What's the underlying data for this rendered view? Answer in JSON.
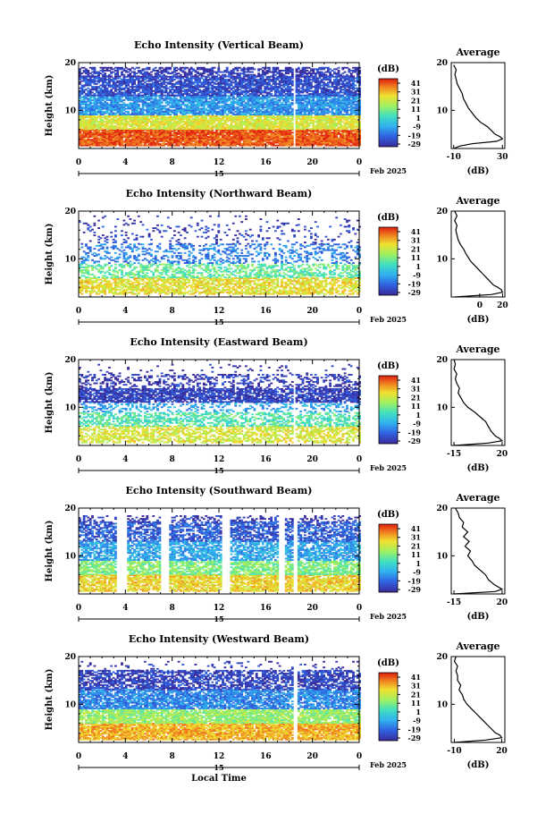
{
  "chart_data": [
    {
      "type": "heatmap",
      "title": "Echo Intensity (Vertical Beam)",
      "ylabel": "Height (km)",
      "xlim": [
        0,
        24
      ],
      "ylim": [
        2,
        20
      ],
      "x_ticks": [
        "0",
        "4",
        "8",
        "12",
        "16",
        "20",
        "0"
      ],
      "y_ticks": [
        "20",
        "10"
      ],
      "date_mark": "15",
      "date_label": "Feb 2025",
      "colorbar": {
        "label": "(dB)",
        "ticks": [
          "41",
          "31",
          "21",
          "11",
          "1",
          "-9",
          "-19",
          "-29"
        ]
      },
      "layers": [
        {
          "bottom": 2.5,
          "top": 6,
          "value": 35,
          "coverage": 0.95
        },
        {
          "bottom": 6,
          "top": 9,
          "value": 18,
          "coverage": 0.9
        },
        {
          "bottom": 9,
          "top": 13,
          "value": -12,
          "coverage": 0.85
        },
        {
          "bottom": 13,
          "top": 17,
          "value": -22,
          "coverage": 0.8
        },
        {
          "bottom": 17,
          "top": 19,
          "value": -26,
          "coverage": 0.6
        }
      ],
      "gaps": [
        18.2,
        18.5
      ],
      "profile": {
        "title": "Average",
        "xlabel": "(dB)",
        "x_ticks": [
          "-10",
          "30"
        ],
        "x_tick_values": [
          -10,
          30
        ],
        "xlim": [
          -12,
          32
        ],
        "y_ticks": [
          "20",
          "10"
        ],
        "points": [
          [
            -10,
            2
          ],
          [
            -5,
            2.5
          ],
          [
            5,
            3
          ],
          [
            25,
            3.5
          ],
          [
            30,
            4
          ],
          [
            28,
            4.5
          ],
          [
            24,
            5
          ],
          [
            22,
            5.5
          ],
          [
            20,
            6
          ],
          [
            18,
            6.5
          ],
          [
            15,
            7
          ],
          [
            12,
            7.5
          ],
          [
            8,
            8.5
          ],
          [
            5,
            9.5
          ],
          [
            2,
            10.5
          ],
          [
            0,
            11.5
          ],
          [
            -2,
            12.5
          ],
          [
            -3,
            13.5
          ],
          [
            -5,
            14.5
          ],
          [
            -7,
            15.5
          ],
          [
            -8,
            16.5
          ],
          [
            -9,
            17.5
          ],
          [
            -8,
            18.5
          ],
          [
            -10,
            19.5
          ]
        ]
      }
    },
    {
      "type": "heatmap",
      "title": "Echo Intensity (Northward Beam)",
      "ylabel": "Height (km)",
      "xlim": [
        0,
        24
      ],
      "ylim": [
        2,
        20
      ],
      "x_ticks": [
        "0",
        "4",
        "8",
        "12",
        "16",
        "20",
        "0"
      ],
      "y_ticks": [
        "20",
        "10"
      ],
      "date_mark": "15",
      "date_label": "Feb 2025",
      "colorbar": {
        "label": "(dB)",
        "ticks": [
          "41",
          "31",
          "21",
          "11",
          "1",
          "-9",
          "-19",
          "-29"
        ]
      },
      "layers": [
        {
          "bottom": 2.5,
          "top": 6,
          "value": 20,
          "coverage": 0.7
        },
        {
          "bottom": 6,
          "top": 9,
          "value": 5,
          "coverage": 0.5
        },
        {
          "bottom": 9,
          "top": 13,
          "value": -15,
          "coverage": 0.3
        },
        {
          "bottom": 13,
          "top": 17,
          "value": -24,
          "coverage": 0.12
        },
        {
          "bottom": 17,
          "top": 19,
          "value": -27,
          "coverage": 0.04
        }
      ],
      "gaps": [],
      "profile": {
        "title": "Average",
        "xlabel": "(dB)",
        "x_ticks": [
          "0",
          "20"
        ],
        "x_tick_values": [
          0,
          20
        ],
        "xlim": [
          -25,
          22
        ],
        "y_ticks": [
          "20",
          "10"
        ],
        "points": [
          [
            -22,
            2
          ],
          [
            10,
            2.5
          ],
          [
            20,
            3
          ],
          [
            19,
            3.5
          ],
          [
            16,
            4
          ],
          [
            12,
            4.5
          ],
          [
            8,
            5.5
          ],
          [
            4,
            6.5
          ],
          [
            0,
            7.5
          ],
          [
            -4,
            8.5
          ],
          [
            -8,
            9.5
          ],
          [
            -12,
            11
          ],
          [
            -14,
            12
          ],
          [
            -17,
            13
          ],
          [
            -19,
            14
          ],
          [
            -20,
            15
          ],
          [
            -21,
            16
          ],
          [
            -20,
            17
          ],
          [
            -22,
            18
          ],
          [
            -20,
            19
          ],
          [
            -22,
            20
          ]
        ]
      }
    },
    {
      "type": "heatmap",
      "title": "Echo Intensity (Eastward Beam)",
      "ylabel": "Height (km)",
      "xlim": [
        0,
        24
      ],
      "ylim": [
        2,
        20
      ],
      "x_ticks": [
        "0",
        "4",
        "8",
        "12",
        "16",
        "20",
        "0"
      ],
      "y_ticks": [
        "20",
        "10"
      ],
      "date_mark": "15",
      "date_label": "Feb 2025",
      "colorbar": {
        "label": "(dB)",
        "ticks": [
          "41",
          "31",
          "21",
          "11",
          "1",
          "-9",
          "-19",
          "-29"
        ]
      },
      "layers": [
        {
          "bottom": 2.5,
          "top": 6,
          "value": 18,
          "coverage": 0.6
        },
        {
          "bottom": 6,
          "top": 9,
          "value": 3,
          "coverage": 0.55
        },
        {
          "bottom": 9,
          "top": 11,
          "value": -10,
          "coverage": 0.3
        },
        {
          "bottom": 11,
          "top": 14,
          "value": -24,
          "coverage": 0.8
        },
        {
          "bottom": 14,
          "top": 17,
          "value": -26,
          "coverage": 0.35
        },
        {
          "bottom": 17,
          "top": 19,
          "value": -28,
          "coverage": 0.05
        }
      ],
      "gaps": [
        18.2,
        18.5
      ],
      "profile": {
        "title": "Average",
        "xlabel": "(dB)",
        "x_ticks": [
          "-15",
          "20"
        ],
        "x_tick_values": [
          -15,
          20
        ],
        "xlim": [
          -17,
          22
        ],
        "y_ticks": [
          "20",
          "10"
        ],
        "points": [
          [
            -15,
            2
          ],
          [
            10,
            2.5
          ],
          [
            20,
            3
          ],
          [
            18,
            3.5
          ],
          [
            15,
            4
          ],
          [
            12,
            5
          ],
          [
            10,
            6
          ],
          [
            8,
            7
          ],
          [
            4,
            8
          ],
          [
            0,
            9
          ],
          [
            -5,
            10
          ],
          [
            -8,
            11
          ],
          [
            -10,
            12
          ],
          [
            -12,
            13
          ],
          [
            -11,
            14
          ],
          [
            -13,
            15
          ],
          [
            -14,
            16
          ],
          [
            -13,
            17
          ],
          [
            -15,
            18
          ],
          [
            -14,
            19
          ],
          [
            -15,
            20
          ]
        ]
      }
    },
    {
      "type": "heatmap",
      "title": "Echo Intensity (Southward Beam)",
      "ylabel": "Height (km)",
      "xlim": [
        0,
        24
      ],
      "ylim": [
        2,
        20
      ],
      "x_ticks": [
        "0",
        "4",
        "8",
        "12",
        "16",
        "20",
        "0"
      ],
      "y_ticks": [
        "20",
        "10"
      ],
      "date_mark": "15",
      "date_label": "Feb 2025",
      "colorbar": {
        "label": "(dB)",
        "ticks": [
          "41",
          "31",
          "21",
          "11",
          "1",
          "-9",
          "-19",
          "-29"
        ]
      },
      "layers": [
        {
          "bottom": 2.5,
          "top": 6,
          "value": 22,
          "coverage": 0.8
        },
        {
          "bottom": 6,
          "top": 9,
          "value": 8,
          "coverage": 0.75
        },
        {
          "bottom": 9,
          "top": 13,
          "value": -10,
          "coverage": 0.7
        },
        {
          "bottom": 13,
          "top": 17,
          "value": -20,
          "coverage": 0.65
        },
        {
          "bottom": 17,
          "top": 18.5,
          "value": -26,
          "coverage": 0.3
        }
      ],
      "gaps": [
        3.2,
        4.0,
        7.0,
        7.6,
        12.2,
        12.8,
        17.0,
        17.6,
        18.2,
        18.7
      ],
      "profile": {
        "title": "Average",
        "xlabel": "(dB)",
        "x_ticks": [
          "-15",
          "20"
        ],
        "x_tick_values": [
          -15,
          20
        ],
        "xlim": [
          -17,
          22
        ],
        "y_ticks": [
          "20",
          "10"
        ],
        "points": [
          [
            -15,
            2
          ],
          [
            15,
            2.5
          ],
          [
            20,
            3
          ],
          [
            17,
            3.5
          ],
          [
            14,
            4
          ],
          [
            10,
            5
          ],
          [
            8,
            6
          ],
          [
            4,
            7
          ],
          [
            0,
            8
          ],
          [
            -2,
            9
          ],
          [
            -5,
            10
          ],
          [
            -3,
            11
          ],
          [
            -7,
            12
          ],
          [
            -4,
            13
          ],
          [
            -8,
            14
          ],
          [
            -5,
            15
          ],
          [
            -9,
            16
          ],
          [
            -8,
            17
          ],
          [
            -11,
            18
          ],
          [
            -12,
            19
          ],
          [
            -14,
            20
          ]
        ]
      }
    },
    {
      "type": "heatmap",
      "title": "Echo Intensity (Westward Beam)",
      "ylabel": "Height (km)",
      "xlabel": "Local Time",
      "xlim": [
        0,
        24
      ],
      "ylim": [
        2,
        20
      ],
      "x_ticks": [
        "0",
        "4",
        "8",
        "12",
        "16",
        "20",
        "0"
      ],
      "y_ticks": [
        "20",
        "10"
      ],
      "date_mark": "15",
      "date_label": "Feb 2025",
      "colorbar": {
        "label": "(dB)",
        "ticks": [
          "41",
          "31",
          "21",
          "11",
          "1",
          "-9",
          "-19",
          "-29"
        ]
      },
      "layers": [
        {
          "bottom": 2.5,
          "top": 6,
          "value": 26,
          "coverage": 0.9
        },
        {
          "bottom": 6,
          "top": 9,
          "value": 10,
          "coverage": 0.85
        },
        {
          "bottom": 9,
          "top": 13,
          "value": -14,
          "coverage": 0.8
        },
        {
          "bottom": 13,
          "top": 17,
          "value": -24,
          "coverage": 0.65
        },
        {
          "bottom": 17,
          "top": 19,
          "value": -27,
          "coverage": 0.08
        }
      ],
      "gaps": [
        18.2,
        18.6
      ],
      "profile": {
        "title": "Average",
        "xlabel": "(dB)",
        "x_ticks": [
          "-10",
          "20"
        ],
        "x_tick_values": [
          -10,
          20
        ],
        "xlim": [
          -12,
          22
        ],
        "y_ticks": [
          "20",
          "10"
        ],
        "points": [
          [
            -10,
            2
          ],
          [
            10,
            2.5
          ],
          [
            20,
            3
          ],
          [
            19,
            3.5
          ],
          [
            16,
            4
          ],
          [
            13,
            5
          ],
          [
            10,
            6
          ],
          [
            7,
            7
          ],
          [
            4,
            8
          ],
          [
            1,
            9
          ],
          [
            -2,
            10
          ],
          [
            -4,
            11
          ],
          [
            -5,
            12
          ],
          [
            -7,
            13
          ],
          [
            -6,
            14
          ],
          [
            -8,
            15
          ],
          [
            -8,
            16
          ],
          [
            -9,
            17
          ],
          [
            -8,
            18
          ],
          [
            -10,
            19
          ],
          [
            -9,
            20
          ]
        ]
      }
    }
  ]
}
